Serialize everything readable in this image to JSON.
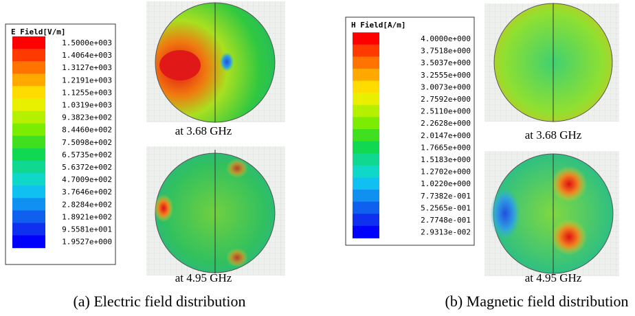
{
  "panels": [
    {
      "legend": {
        "title": "E Field[V/m]",
        "labels": [
          "1.5000e+003",
          "1.4064e+003",
          "1.3127e+003",
          "1.2191e+003",
          "1.1255e+003",
          "1.0319e+003",
          "9.3823e+002",
          "8.4460e+002",
          "7.5098e+002",
          "6.5735e+002",
          "5.6372e+002",
          "4.7009e+002",
          "3.7646e+002",
          "2.8284e+002",
          "1.8921e+002",
          "9.5581e+001",
          "1.9527e+000"
        ]
      },
      "plots": [
        {
          "caption": "at 3.68 GHz"
        },
        {
          "caption": "at 4.95 GHz"
        }
      ],
      "caption": "(a) Electric field distribution"
    },
    {
      "legend": {
        "title": "H Field[A/m]",
        "labels": [
          "4.0000e+000",
          "3.7518e+000",
          "3.5037e+000",
          "3.2555e+000",
          "3.0073e+000",
          "2.7592e+000",
          "2.5110e+000",
          "2.2628e+000",
          "2.0147e+000",
          "1.7665e+000",
          "1.5183e+000",
          "1.2702e+000",
          "1.0220e+000",
          "7.7382e-001",
          "5.2565e-001",
          "2.7748e-001",
          "2.9313e-002"
        ]
      },
      "plots": [
        {
          "caption": "at 3.68 GHz"
        },
        {
          "caption": "at 4.95 GHz"
        }
      ],
      "caption": "(b) Magnetic field distribution"
    }
  ]
}
